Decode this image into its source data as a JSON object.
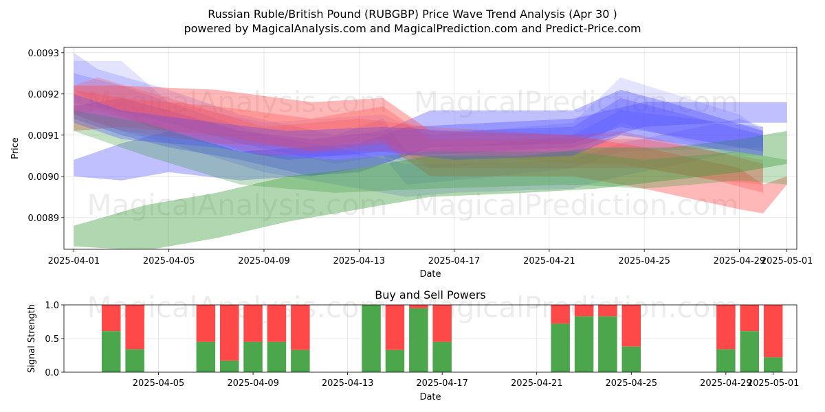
{
  "title": "Russian Ruble/British Pound (RUBGBP) Price Wave Trend Analysis (Apr 30 )",
  "subtitle": "powered by MagicalAnalysis.com and MagicalPrediction.com and Predict-Price.com",
  "watermarks": [
    "MagicalAnalysis.com",
    "MagicalPrediction.com"
  ],
  "colors": {
    "blue": "#4a4aff",
    "red": "#ff4d4d",
    "green": "#3a9a3a",
    "buy": "#4ca64c",
    "sell": "#ff4848"
  },
  "chart_data": [
    {
      "type": "area",
      "xlabel": "Date",
      "ylabel": "Price",
      "x_ticks": [
        "2025-04-01",
        "2025-04-05",
        "2025-04-09",
        "2025-04-13",
        "2025-04-17",
        "2025-04-21",
        "2025-04-25",
        "2025-04-29",
        "2025-05-01"
      ],
      "y_ticks": [
        "0.0089",
        "0.0090",
        "0.0091",
        "0.0092",
        "0.0093"
      ],
      "xlim": [
        "2025-03-31T14:00",
        "2025-05-01T10:00"
      ],
      "ylim": [
        0.008823,
        0.009313
      ],
      "grid": true,
      "series": [
        {
          "color": "blue",
          "opacity": 0.35,
          "points": [
            [
              "2025-04-01",
              0.009,
              0.00904
            ],
            [
              "2025-04-03",
              0.00908,
              0.00899
            ],
            [
              "2025-04-05",
              0.00911,
              0.00901
            ],
            [
              "2025-04-08",
              0.00906,
              0.00899
            ],
            [
              "2025-04-13",
              0.00908,
              0.00901
            ],
            [
              "2025-04-15",
              0.00912,
              0.00905
            ],
            [
              "2025-04-22",
              0.00914,
              0.00907
            ],
            [
              "2025-04-25",
              0.00918,
              0.00912
            ],
            [
              "2025-04-28",
              0.00918,
              0.00913
            ],
            [
              "2025-04-29",
              0.00918,
              0.00913
            ],
            [
              "2025-05-01",
              0.00918,
              0.00913
            ]
          ]
        },
        {
          "color": "blue",
          "opacity": 0.35,
          "points": [
            [
              "2025-04-01",
              0.00917,
              0.00914
            ],
            [
              "2025-04-03",
              0.00919,
              0.0091
            ],
            [
              "2025-04-05",
              0.00916,
              0.00907
            ],
            [
              "2025-04-08",
              0.00911,
              0.00904
            ],
            [
              "2025-04-11",
              0.00909,
              0.009
            ],
            [
              "2025-04-14",
              0.00911,
              0.00903
            ],
            [
              "2025-04-16",
              0.00916,
              0.00907
            ],
            [
              "2025-04-22",
              0.00916,
              0.00908
            ],
            [
              "2025-04-24",
              0.00921,
              0.00912
            ],
            [
              "2025-04-26",
              0.00918,
              0.0091
            ],
            [
              "2025-04-30",
              0.00911,
              0.00906
            ]
          ]
        },
        {
          "color": "blue",
          "opacity": 0.2,
          "points": [
            [
              "2025-04-01",
              0.00925,
              0.00915
            ],
            [
              "2025-04-03",
              0.00922,
              0.00911
            ],
            [
              "2025-04-05",
              0.00918,
              0.00908
            ],
            [
              "2025-04-09",
              0.0091,
              0.00901
            ],
            [
              "2025-04-12",
              0.00907,
              0.00898
            ],
            [
              "2025-04-15",
              0.00903,
              0.00895
            ],
            [
              "2025-04-17",
              0.00903,
              0.00896
            ],
            [
              "2025-04-22",
              0.00904,
              0.00897
            ],
            [
              "2025-04-24",
              0.00908,
              0.009
            ],
            [
              "2025-04-29",
              0.00914,
              0.00906
            ],
            [
              "2025-04-30",
              0.00912,
              0.00905
            ]
          ]
        },
        {
          "color": "blue",
          "opacity": 0.2,
          "points": [
            [
              "2025-04-01",
              0.0093,
              0.00921
            ],
            [
              "2025-04-02",
              0.00926,
              0.00917
            ],
            [
              "2025-04-05",
              0.00921,
              0.00913
            ],
            [
              "2025-04-08",
              0.00915,
              0.00908
            ],
            [
              "2025-04-12",
              0.0091,
              0.00903
            ],
            [
              "2025-04-14",
              0.00914,
              0.00905
            ],
            [
              "2025-04-15",
              0.00906,
              0.00898
            ],
            [
              "2025-04-17",
              0.00907,
              0.00899
            ],
            [
              "2025-04-22",
              0.0091,
              0.00902
            ],
            [
              "2025-04-24",
              0.00916,
              0.00906
            ],
            [
              "2025-04-30",
              0.00912,
              0.00907
            ]
          ]
        },
        {
          "color": "blue",
          "opacity": 0.15,
          "points": [
            [
              "2025-04-01",
              0.00928,
              0.00918
            ],
            [
              "2025-04-03",
              0.00928,
              0.00915
            ],
            [
              "2025-04-05",
              0.00918,
              0.0091
            ],
            [
              "2025-04-09",
              0.00913,
              0.00905
            ],
            [
              "2025-04-14",
              0.00915,
              0.00905
            ],
            [
              "2025-04-16",
              0.0091,
              0.00902
            ],
            [
              "2025-04-22",
              0.00913,
              0.00905
            ],
            [
              "2025-04-24",
              0.00924,
              0.00913
            ],
            [
              "2025-04-29",
              0.00915,
              0.00905
            ],
            [
              "2025-04-30",
              0.00911,
              0.00905
            ]
          ]
        },
        {
          "color": "red",
          "opacity": 0.4,
          "points": [
            [
              "2025-04-01",
              0.00922,
              0.00911
            ],
            [
              "2025-04-03",
              0.00922,
              0.00912
            ],
            [
              "2025-04-07",
              0.00921,
              0.0091
            ],
            [
              "2025-04-11",
              0.00918,
              0.00906
            ],
            [
              "2025-04-14",
              0.00919,
              0.00908
            ],
            [
              "2025-04-16",
              0.00911,
              0.009
            ],
            [
              "2025-04-22",
              0.0091,
              0.009
            ],
            [
              "2025-04-25",
              0.00907,
              0.00897
            ],
            [
              "2025-04-29",
              0.00902,
              0.00892
            ],
            [
              "2025-04-30",
              0.00898,
              0.00891
            ],
            [
              "2025-05-01",
              0.009,
              0.00898
            ]
          ]
        },
        {
          "color": "red",
          "opacity": 0.3,
          "points": [
            [
              "2025-04-01",
              0.00921,
              0.00915
            ],
            [
              "2025-04-03",
              0.00919,
              0.00911
            ],
            [
              "2025-04-07",
              0.00917,
              0.00908
            ],
            [
              "2025-04-11",
              0.00914,
              0.00907
            ],
            [
              "2025-04-14",
              0.00917,
              0.00909
            ],
            [
              "2025-04-16",
              0.00909,
              0.00902
            ],
            [
              "2025-04-22",
              0.00909,
              0.00902
            ],
            [
              "2025-04-25",
              0.00909,
              0.00902
            ],
            [
              "2025-04-28",
              0.00906,
              0.00899
            ],
            [
              "2025-04-30",
              0.00903,
              0.00896
            ]
          ]
        },
        {
          "color": "red",
          "opacity": 0.25,
          "points": [
            [
              "2025-04-01",
              0.00922,
              0.00915
            ],
            [
              "2025-04-02",
              0.00924,
              0.00916
            ],
            [
              "2025-04-05",
              0.00919,
              0.00911
            ],
            [
              "2025-04-09",
              0.00912,
              0.00905
            ],
            [
              "2025-04-13",
              0.00914,
              0.00906
            ],
            [
              "2025-04-16",
              0.00912,
              0.00906
            ],
            [
              "2025-04-22",
              0.0091,
              0.00903
            ],
            [
              "2025-04-24",
              0.00911,
              0.00903
            ],
            [
              "2025-04-28",
              0.00906,
              0.00899
            ],
            [
              "2025-04-30",
              0.00904,
              0.00898
            ]
          ]
        },
        {
          "color": "green",
          "opacity": 0.4,
          "points": [
            [
              "2025-04-01",
              0.00888,
              0.00883
            ],
            [
              "2025-04-04",
              0.00893,
              0.00882
            ],
            [
              "2025-04-07",
              0.00896,
              0.00885
            ],
            [
              "2025-04-10",
              0.009,
              0.00889
            ],
            [
              "2025-04-13",
              0.00902,
              0.00892
            ],
            [
              "2025-04-16",
              0.00905,
              0.00895
            ],
            [
              "2025-04-20",
              0.00905,
              0.00896
            ],
            [
              "2025-04-23",
              0.00907,
              0.00897
            ],
            [
              "2025-04-26",
              0.00907,
              0.00899
            ],
            [
              "2025-04-29",
              0.00909,
              0.00901
            ],
            [
              "2025-05-01",
              0.00911,
              0.00903
            ]
          ]
        },
        {
          "color": "green",
          "opacity": 0.3,
          "points": [
            [
              "2025-04-01",
              0.00916,
              0.00911
            ],
            [
              "2025-04-04",
              0.00913,
              0.00905
            ],
            [
              "2025-04-08",
              0.00906,
              0.00898
            ],
            [
              "2025-04-12",
              0.00904,
              0.00896
            ],
            [
              "2025-04-16",
              0.00906,
              0.00897
            ],
            [
              "2025-04-22",
              0.00906,
              0.00898
            ],
            [
              "2025-04-25",
              0.00904,
              0.00897
            ],
            [
              "2025-04-29",
              0.00906,
              0.00899
            ],
            [
              "2025-05-01",
              0.00904,
              0.00898
            ]
          ]
        },
        {
          "color": "blue",
          "opacity": 0.3,
          "points": [
            [
              "2025-04-01",
              0.0092,
              0.00913
            ],
            [
              "2025-04-03",
              0.00916,
              0.00909
            ],
            [
              "2025-04-07",
              0.00913,
              0.00907
            ],
            [
              "2025-04-10",
              0.00911,
              0.00904
            ],
            [
              "2025-04-14",
              0.00912,
              0.00906
            ],
            [
              "2025-04-17",
              0.00911,
              0.00904
            ],
            [
              "2025-04-22",
              0.00912,
              0.00905
            ],
            [
              "2025-04-24",
              0.00919,
              0.0091
            ],
            [
              "2025-04-30",
              0.0091,
              0.00905
            ]
          ]
        }
      ]
    },
    {
      "type": "bar",
      "title": "Buy and Sell Powers",
      "xlabel": "Date",
      "ylabel": "Signal Strength",
      "ylim": [
        0,
        1
      ],
      "y_ticks": [
        "0.0",
        "0.5",
        "1.0"
      ],
      "x_ticks": [
        "2025-04-05",
        "2025-04-09",
        "2025-04-13",
        "2025-04-17",
        "2025-04-21",
        "2025-04-25",
        "2025-04-29",
        "2025-05-01"
      ],
      "xlim": [
        "2025-04-01T00:00",
        "2025-05-02T00:00"
      ],
      "grid": true,
      "series": [
        {
          "name": "buy",
          "color": "buy"
        },
        {
          "name": "sell",
          "color": "sell"
        }
      ],
      "bars": [
        [
          "2025-04-03",
          0.61
        ],
        [
          "2025-04-04",
          0.34
        ],
        [
          "2025-04-07",
          0.45
        ],
        [
          "2025-04-08",
          0.17
        ],
        [
          "2025-04-09",
          0.45
        ],
        [
          "2025-04-10",
          0.45
        ],
        [
          "2025-04-11",
          0.33
        ],
        [
          "2025-04-14",
          1.0
        ],
        [
          "2025-04-15",
          0.33
        ],
        [
          "2025-04-16",
          0.95
        ],
        [
          "2025-04-17",
          0.45
        ],
        [
          "2025-04-22",
          0.72
        ],
        [
          "2025-04-23",
          0.83
        ],
        [
          "2025-04-24",
          0.83
        ],
        [
          "2025-04-25",
          0.38
        ],
        [
          "2025-04-29",
          0.34
        ],
        [
          "2025-04-30",
          0.61
        ],
        [
          "2025-05-01",
          0.22
        ]
      ]
    }
  ]
}
